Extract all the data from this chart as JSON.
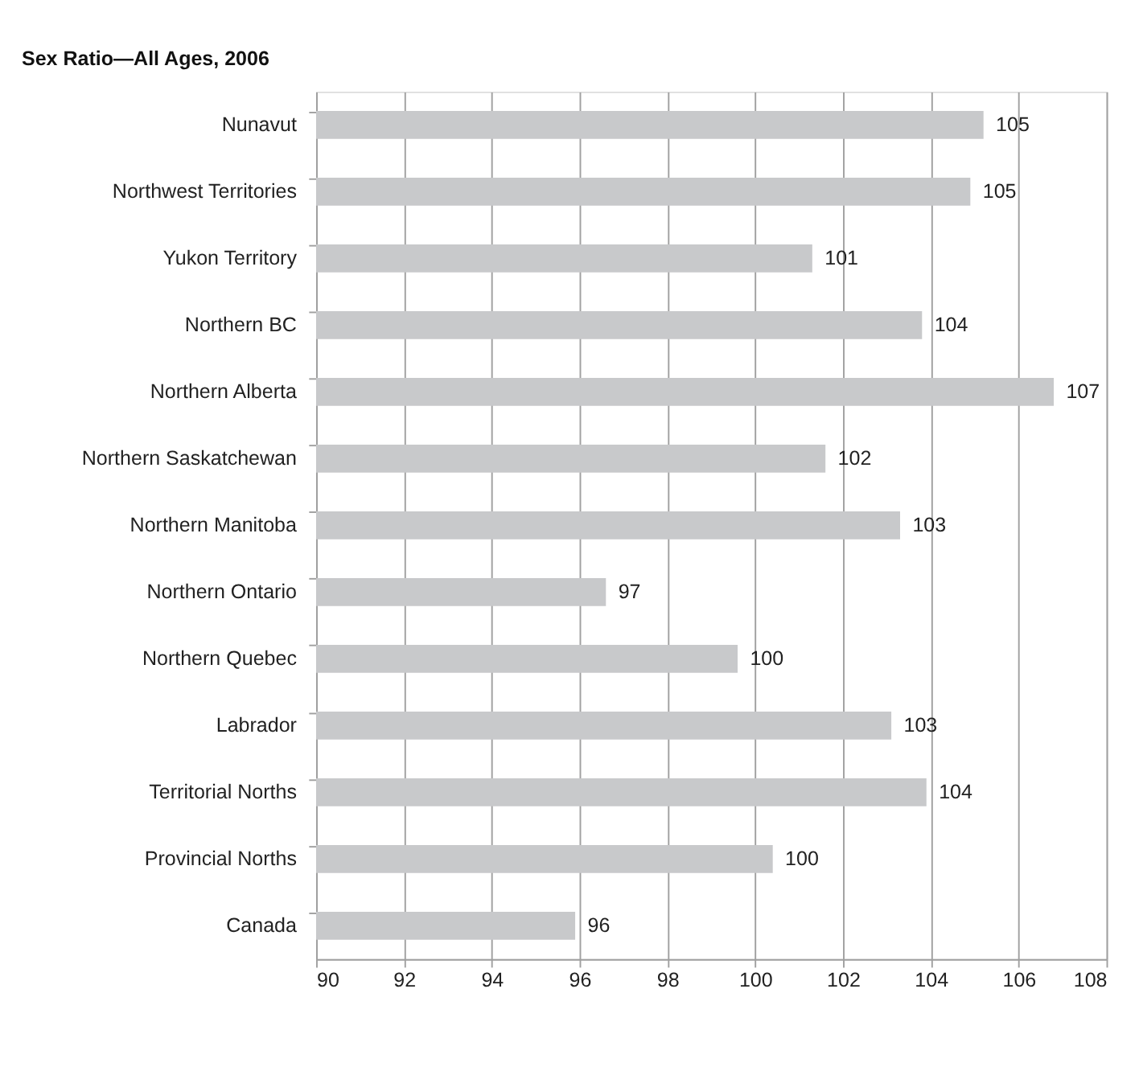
{
  "chart_data": {
    "type": "bar",
    "orientation": "horizontal",
    "title": "Sex Ratio—All Ages,  2006",
    "categories": [
      "Nunavut",
      "Northwest Territories",
      "Yukon Territory",
      "Northern BC",
      "Northern Alberta",
      "Northern Saskatchewan",
      "Northern Manitoba",
      "Northern Ontario",
      "Northern Quebec",
      "Labrador",
      "Territorial Norths",
      "Provincial Norths",
      "Canada"
    ],
    "values": [
      105.2,
      104.9,
      101.3,
      103.8,
      106.8,
      101.6,
      103.3,
      96.6,
      99.6,
      103.1,
      103.9,
      100.4,
      95.9
    ],
    "value_labels": [
      "105",
      "105",
      "101",
      "104",
      "107",
      "102",
      "103",
      "97",
      "100",
      "103",
      "104",
      "100",
      "96"
    ],
    "color": "#c8c9cb",
    "xlim": [
      90,
      108
    ],
    "xticks": [
      90,
      92,
      94,
      96,
      98,
      100,
      102,
      104,
      106,
      108
    ],
    "grid": "x"
  }
}
